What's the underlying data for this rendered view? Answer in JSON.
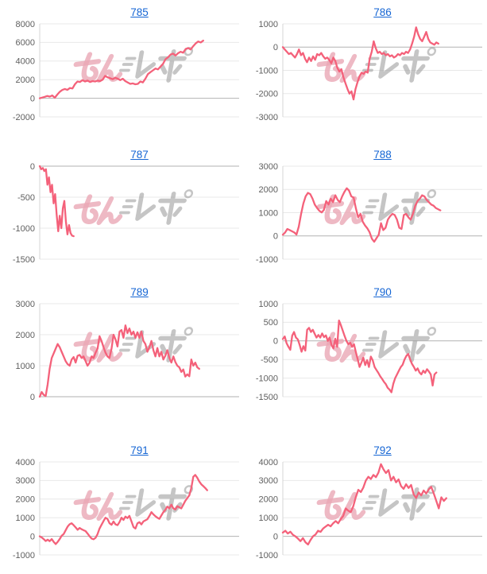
{
  "page": {
    "background": "#ffffff"
  },
  "watermark": {
    "text": "みんレポ",
    "pink_color": "#eaa7b5",
    "gray_color": "#9f9f9f"
  },
  "styles": {
    "line_color": "#f4617a",
    "grid_color": "#e8e8e8",
    "zero_line_color": "#b2b2b2",
    "axis_color": "#d6d6d6",
    "tick_label_color": "#5f5f5f",
    "link_color": "#1666d4"
  },
  "chart_data": [
    {
      "type": "line",
      "title": "785",
      "xlabel": "",
      "ylabel": "",
      "ylim": [
        -2000,
        8000
      ],
      "ytick_step": 2000,
      "yticks": [
        8000,
        6000,
        4000,
        2000,
        0,
        -2000
      ],
      "grid": true,
      "legend": false,
      "span": 0.82,
      "values": [
        0,
        80,
        150,
        250,
        180,
        300,
        60,
        400,
        700,
        900,
        1000,
        900,
        1100,
        1050,
        1500,
        1800,
        1750,
        1950,
        1800,
        1900,
        1750,
        1850,
        1800,
        1900,
        1850,
        2000,
        2400,
        2250,
        2150,
        2050,
        2200,
        2100,
        1950,
        2100,
        1850,
        1700,
        1550,
        1600,
        1500,
        1550,
        1800,
        1700,
        2100,
        2600,
        2800,
        3000,
        3200,
        3100,
        3400,
        3700,
        4200,
        4400,
        4700,
        4800,
        4600,
        4850,
        5000,
        4900,
        5300,
        5400,
        5250,
        5600,
        5900,
        6100,
        6000,
        6200
      ]
    },
    {
      "type": "line",
      "title": "786",
      "xlabel": "",
      "ylabel": "",
      "ylim": [
        -3000,
        1000
      ],
      "ytick_step": 1000,
      "yticks": [
        1000,
        0,
        -1000,
        -2000,
        -3000
      ],
      "grid": true,
      "legend": false,
      "span": 0.78,
      "values": [
        0,
        -100,
        -200,
        -300,
        -250,
        -350,
        -450,
        -300,
        -100,
        -350,
        -250,
        -500,
        -650,
        -450,
        -600,
        -400,
        -550,
        -300,
        -350,
        -250,
        -400,
        -500,
        -450,
        -550,
        -700,
        -450,
        -600,
        -900,
        -1050,
        -950,
        -1300,
        -1550,
        -1800,
        -2000,
        -1900,
        -2250,
        -1800,
        -1500,
        -1250,
        -1100,
        -1150,
        -1050,
        -1100,
        -500,
        -200,
        250,
        -50,
        -250,
        -200,
        -300,
        -250,
        -350,
        -300,
        -400,
        -350,
        -450,
        -400,
        -300,
        -350,
        -250,
        -300,
        -200,
        -250,
        -100,
        150,
        450,
        850,
        550,
        350,
        250,
        450,
        650,
        350,
        200,
        150,
        100,
        200,
        150
      ]
    },
    {
      "type": "line",
      "title": "787",
      "xlabel": "",
      "ylabel": "",
      "ylim": [
        -1500,
        0
      ],
      "ytick_step": 500,
      "yticks": [
        0,
        -500,
        -1000,
        -1500
      ],
      "grid": true,
      "legend": false,
      "span": 0.17,
      "values": [
        0,
        -50,
        -30,
        -80,
        -50,
        -300,
        -180,
        -420,
        -300,
        -600,
        -450,
        -780,
        -1050,
        -800,
        -1000,
        -680,
        -560,
        -900,
        -1100,
        -950,
        -1080,
        -1120,
        -1130
      ]
    },
    {
      "type": "line",
      "title": "788",
      "xlabel": "",
      "ylabel": "",
      "ylim": [
        -1000,
        3000
      ],
      "ytick_step": 1000,
      "yticks": [
        3000,
        2000,
        1000,
        0,
        -1000
      ],
      "grid": true,
      "legend": false,
      "span": 0.79,
      "values": [
        50,
        150,
        300,
        250,
        200,
        150,
        60,
        400,
        950,
        1400,
        1700,
        1850,
        1800,
        1600,
        1350,
        1200,
        1080,
        1010,
        1120,
        1500,
        1350,
        1600,
        1450,
        1750,
        1550,
        1450,
        1700,
        1900,
        2050,
        1950,
        1700,
        1650,
        1180,
        800,
        950,
        610,
        450,
        330,
        160,
        -120,
        -250,
        -100,
        50,
        550,
        250,
        350,
        700,
        850,
        950,
        900,
        700,
        350,
        300,
        900,
        950,
        800,
        700,
        950,
        1300,
        1500,
        1600,
        1750,
        1700,
        1550,
        1450,
        1350,
        1300,
        1200,
        1150,
        1100
      ]
    },
    {
      "type": "line",
      "title": "789",
      "xlabel": "",
      "ylabel": "",
      "ylim": [
        0,
        3000
      ],
      "ytick_step": 1000,
      "yticks": [
        3000,
        2000,
        1000,
        0
      ],
      "grid": true,
      "legend": false,
      "span": 0.8,
      "values": [
        0,
        150,
        60,
        20,
        400,
        900,
        1250,
        1400,
        1550,
        1700,
        1600,
        1450,
        1300,
        1150,
        1050,
        1000,
        1200,
        1280,
        1100,
        1320,
        1350,
        1250,
        1300,
        1150,
        1000,
        1100,
        1300,
        1250,
        1420,
        1550,
        1950,
        1800,
        1600,
        1420,
        1300,
        1250,
        1550,
        2000,
        1850,
        1620,
        2100,
        2150,
        1900,
        2300,
        2050,
        2200,
        2000,
        2100,
        1900,
        2080,
        1900,
        2100,
        1800,
        1700,
        1450,
        1600,
        1800,
        1500,
        1300,
        1570,
        1300,
        1450,
        1200,
        1320,
        1500,
        1250,
        1100,
        1300,
        1120,
        1000,
        950,
        800,
        880,
        650,
        720,
        660,
        1200,
        1000,
        1100,
        950,
        900
      ]
    },
    {
      "type": "line",
      "title": "790",
      "xlabel": "",
      "ylabel": "",
      "ylim": [
        -1500,
        1000
      ],
      "ytick_step": 500,
      "yticks": [
        1000,
        500,
        0,
        -500,
        -1000,
        -1500
      ],
      "grid": true,
      "legend": false,
      "span": 0.77,
      "values": [
        50,
        120,
        -60,
        -160,
        -240,
        140,
        240,
        90,
        40,
        -110,
        -290,
        -140,
        -260,
        300,
        350,
        240,
        300,
        190,
        90,
        160,
        90,
        200,
        100,
        150,
        0,
        90,
        -110,
        -200,
        60,
        -160,
        550,
        420,
        280,
        130,
        0,
        -90,
        -50,
        -160,
        -90,
        -300,
        -500,
        -700,
        -580,
        -450,
        -650,
        -520,
        -700,
        -420,
        -520,
        -700,
        -780,
        -860,
        -950,
        -1020,
        -1100,
        -1160,
        -1260,
        -1310,
        -1380,
        -1150,
        -1000,
        -900,
        -800,
        -700,
        -640,
        -500,
        -400,
        -350,
        -500,
        -620,
        -700,
        -800,
        -740,
        -850,
        -900,
        -800,
        -860,
        -760,
        -820,
        -900,
        -1200,
        -900,
        -850
      ]
    },
    {
      "type": "line",
      "title": "791",
      "xlabel": "",
      "ylabel": "",
      "ylim": [
        -1000,
        4000
      ],
      "ytick_step": 1000,
      "yticks": [
        4000,
        3000,
        2000,
        1000,
        0,
        -1000
      ],
      "grid": true,
      "legend": false,
      "span": 0.84,
      "values": [
        0,
        -60,
        -150,
        -250,
        -180,
        -260,
        -150,
        -300,
        -420,
        -300,
        -150,
        30,
        120,
        320,
        520,
        650,
        700,
        600,
        480,
        350,
        450,
        380,
        330,
        280,
        150,
        0,
        -120,
        -160,
        -80,
        120,
        420,
        620,
        820,
        1000,
        930,
        700,
        620,
        800,
        640,
        600,
        760,
        1000,
        880,
        1060,
        980,
        1100,
        800,
        500,
        420,
        700,
        760,
        640,
        800,
        860,
        920,
        1100,
        1300,
        1180,
        1080,
        1000,
        940,
        1120,
        1300,
        1420,
        1600,
        1500,
        1700,
        1500,
        1440,
        1620,
        1560,
        1500,
        1700,
        1900,
        2050,
        2200,
        2600,
        3200,
        3300,
        3150,
        2950,
        2800,
        2700,
        2600,
        2480
      ]
    },
    {
      "type": "line",
      "title": "792",
      "xlabel": "",
      "ylabel": "",
      "ylim": [
        -1000,
        4000
      ],
      "ytick_step": 1000,
      "yticks": [
        4000,
        3000,
        2000,
        1000,
        0,
        -1000
      ],
      "grid": true,
      "legend": false,
      "span": 0.82,
      "values": [
        200,
        300,
        150,
        250,
        80,
        0,
        -120,
        -260,
        -100,
        -320,
        -440,
        -200,
        0,
        100,
        300,
        240,
        420,
        520,
        620,
        540,
        700,
        820,
        700,
        920,
        1100,
        1500,
        1380,
        1300,
        1620,
        2100,
        2500,
        2380,
        2620,
        3000,
        3200,
        3080,
        3300,
        3180,
        3420,
        3880,
        3600,
        3400,
        3560,
        3000,
        3200,
        2900,
        3060,
        2700,
        2550,
        2800,
        2600,
        2760,
        2250,
        2060,
        2360,
        2200,
        2460,
        2300,
        2520,
        2660,
        2300,
        1900,
        1500,
        2100,
        1900,
        2050
      ]
    }
  ]
}
